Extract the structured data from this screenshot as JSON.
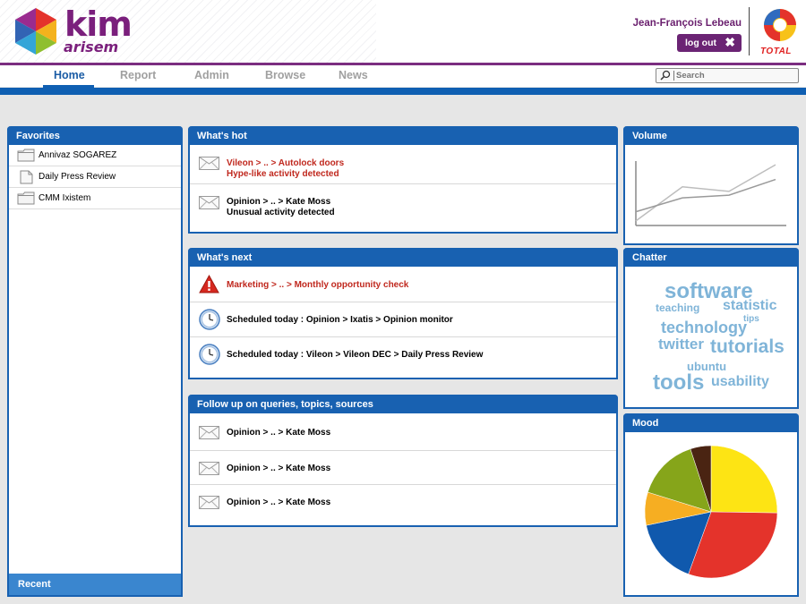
{
  "header": {
    "logo_primary": "kim",
    "logo_secondary": "arisem",
    "user_name": "Jean-François Lebeau",
    "logout_label": "log out",
    "partner_logo_text": "TOTAL"
  },
  "nav": {
    "tabs": [
      {
        "label": "Home",
        "active": true
      },
      {
        "label": "Report",
        "active": false
      },
      {
        "label": "Admin",
        "active": false
      },
      {
        "label": "Browse",
        "active": false
      },
      {
        "label": "News",
        "active": false
      }
    ],
    "search_placeholder": "Search"
  },
  "favorites": {
    "title": "Favorites",
    "items": [
      {
        "label": "Annivaz SOGAREZ",
        "icon": "folder-icon"
      },
      {
        "label": "Daily Press Review",
        "icon": "document-icon"
      },
      {
        "label": "CMM Ixistem",
        "icon": "folder-icon"
      }
    ],
    "recent_label": "Recent"
  },
  "whats_hot": {
    "title": "What's hot",
    "items": [
      {
        "line1": "Vileon > .. > Autolock doors",
        "line2": "Hype-like activity detected",
        "highlight": true,
        "icon": "envelope-icon"
      },
      {
        "line1": "Opinion > .. > Kate Moss",
        "line2": "Unusual activity detected",
        "highlight": false,
        "icon": "envelope-icon"
      }
    ]
  },
  "whats_next": {
    "title": "What's next",
    "items": [
      {
        "text": "Marketing > .. > Monthly opportunity check",
        "highlight": true,
        "icon": "warning-icon"
      },
      {
        "text": "Scheduled today : Opinion > Ixatis > Opinion monitor",
        "highlight": false,
        "icon": "clock-icon"
      },
      {
        "text": "Scheduled today : Vileon > Vileon DEC > Daily Press Review",
        "highlight": false,
        "icon": "clock-icon"
      }
    ]
  },
  "follow_up": {
    "title": "Follow up on queries, topics, sources",
    "items": [
      {
        "text": "Opinion > .. > Kate Moss",
        "icon": "envelope-icon"
      },
      {
        "text": "Opinion > .. > Kate Moss",
        "icon": "envelope-icon"
      },
      {
        "text": "Opinion > .. > Kate Moss",
        "icon": "envelope-icon"
      }
    ]
  },
  "volume": {
    "title": "Volume",
    "chart_data": {
      "type": "line",
      "x": [
        0,
        1,
        2,
        3
      ],
      "series": [
        {
          "values": [
            0.5,
            4.2,
            3.7,
            6.6
          ],
          "color": "#bdbdbd"
        },
        {
          "values": [
            1.5,
            3.0,
            3.3,
            5.0
          ],
          "color": "#9a9a9a"
        }
      ],
      "ylim": [
        0,
        7
      ],
      "grid": false
    }
  },
  "chatter": {
    "title": "Chatter",
    "words": [
      {
        "text": "software",
        "weight": 5
      },
      {
        "text": "teaching",
        "weight": 1
      },
      {
        "text": "statistic",
        "weight": 3
      },
      {
        "text": "tips",
        "weight": 0
      },
      {
        "text": "technology",
        "weight": 3
      },
      {
        "text": "twitter",
        "weight": 3
      },
      {
        "text": "tutorials",
        "weight": 4
      },
      {
        "text": "ubuntu",
        "weight": 2
      },
      {
        "text": "tools",
        "weight": 5
      },
      {
        "text": "usability",
        "weight": 3
      }
    ]
  },
  "mood": {
    "title": "Mood",
    "chart_data": {
      "type": "pie",
      "values": [
        25,
        30,
        16,
        8,
        15,
        5
      ],
      "colors": [
        "#fde414",
        "#e4332b",
        "#1059ad",
        "#f6ae22",
        "#86a51a",
        "#4a2412"
      ]
    }
  },
  "colors": {
    "brand_purple": "#7a1f7c",
    "brand_blue": "#1861b1",
    "alert_red": "#c0281e"
  }
}
